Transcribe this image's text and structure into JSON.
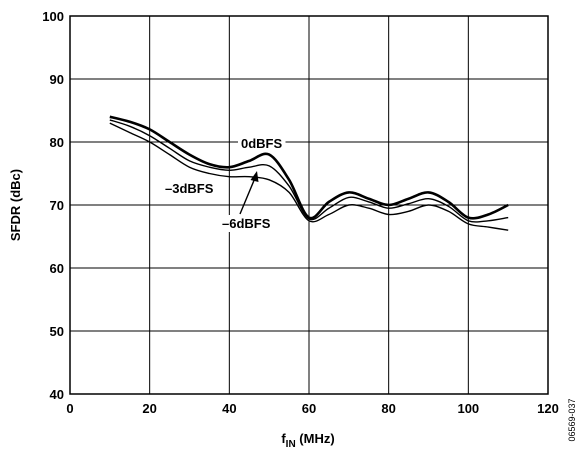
{
  "chart_data": {
    "type": "line",
    "title": "",
    "xlabel_main": "f",
    "xlabel_sub": "IN",
    "xlabel_unit": " (MHz)",
    "ylabel": "SFDR (dBc)",
    "xlim": [
      0,
      120
    ],
    "ylim": [
      40,
      100
    ],
    "x_ticks": [
      "0",
      "20",
      "40",
      "60",
      "80",
      "100",
      "120"
    ],
    "y_ticks": [
      "40",
      "50",
      "60",
      "70",
      "80",
      "90",
      "100"
    ],
    "grid": true,
    "figure_id": "06569-037",
    "series": [
      {
        "name": "0dBFS",
        "x": [
          10,
          15,
          20,
          25,
          30,
          35,
          40,
          45,
          50,
          55,
          60,
          65,
          70,
          75,
          80,
          85,
          90,
          95,
          100,
          105,
          110
        ],
        "y": [
          84,
          83.2,
          82,
          80,
          78,
          76.5,
          76,
          77,
          78,
          74,
          68,
          70.5,
          72,
          71,
          70,
          71,
          72,
          70.5,
          68,
          68.5,
          70
        ]
      },
      {
        "name": "-3dBFS",
        "x": [
          10,
          15,
          20,
          25,
          30,
          35,
          40,
          45,
          50,
          55,
          60,
          65,
          70,
          75,
          80,
          85,
          90,
          95,
          100,
          105,
          110
        ],
        "y": [
          83.5,
          82.5,
          81,
          79,
          77,
          76,
          75.5,
          76,
          76.2,
          73,
          67.8,
          69.5,
          71.2,
          70.5,
          69.5,
          70.2,
          71,
          69.8,
          67.5,
          67.5,
          68
        ]
      },
      {
        "name": "-6dBFS",
        "x": [
          10,
          15,
          20,
          25,
          30,
          35,
          40,
          45,
          50,
          55,
          60,
          65,
          70,
          75,
          80,
          85,
          90,
          95,
          100,
          105,
          110
        ],
        "y": [
          83,
          81.5,
          80,
          78,
          76,
          75,
          74.5,
          74.5,
          74,
          72,
          67.5,
          68.5,
          70,
          69.5,
          68.5,
          69,
          70,
          69,
          67,
          66.5,
          66
        ]
      }
    ],
    "annotations": [
      {
        "text": "0dBFS",
        "series": "0dBFS"
      },
      {
        "text": "–3dBFS",
        "series": "-3dBFS"
      },
      {
        "text": "–6dBFS",
        "series": "-6dBFS"
      }
    ]
  }
}
